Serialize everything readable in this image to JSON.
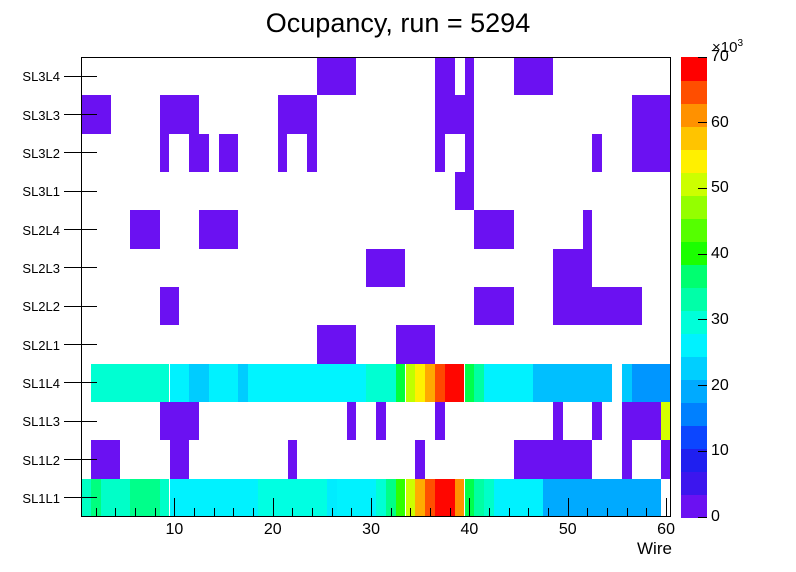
{
  "title": "Ocupancy, run = 5294",
  "x_axis": {
    "title": "Wire",
    "range": [
      0.5,
      60.5
    ],
    "major_ticks": [
      10,
      20,
      30,
      40,
      50,
      60
    ],
    "minor_tick_values": [
      2,
      4,
      6,
      8,
      12,
      14,
      16,
      18,
      22,
      24,
      26,
      28,
      32,
      34,
      36,
      38,
      42,
      44,
      46,
      48,
      52,
      54,
      56,
      58
    ]
  },
  "y_axis": {
    "row_labels": [
      "SL3L4",
      "SL3L3",
      "SL3L2",
      "SL3L1",
      "SL2L4",
      "SL2L3",
      "SL2L2",
      "SL2L1",
      "SL1L4",
      "SL1L3",
      "SL1L2",
      "SL1L1"
    ]
  },
  "colorbar": {
    "exponent_base": "×10",
    "exponent_power": "3",
    "ticks": [
      0,
      10,
      20,
      30,
      40,
      50,
      60,
      70
    ],
    "max_value_k": 70,
    "palette_bottom_to_top": [
      "#6B11F2",
      "#3C16EE",
      "#1F1FF0",
      "#0C46FF",
      "#0080FF",
      "#00AAFF",
      "#00CFFF",
      "#00F2FF",
      "#00FFD9",
      "#00FFA8",
      "#00FF70",
      "#1BFF00",
      "#55FF00",
      "#94FF00",
      "#CCFF00",
      "#FFF000",
      "#FFC400",
      "#FF9100",
      "#FF4E00",
      "#FF0000"
    ]
  },
  "chart_data": {
    "type": "heatmap",
    "title": "Ocupancy, run = 5294",
    "xlabel": "Wire",
    "x_range": [
      1,
      60
    ],
    "value_units": "counts, thousands (×10³)",
    "zlim_k": [
      0,
      70
    ],
    "default_fill_value_k": 2,
    "default_fill_color": "#6B11F2",
    "legend_position": "right-colorbar",
    "grid": false,
    "rows": [
      {
        "label": "SL3L4",
        "cells": [
          [
            25,
            28
          ],
          [
            37,
            38
          ],
          [
            40,
            40
          ],
          [
            45,
            48
          ]
        ]
      },
      {
        "label": "SL3L3",
        "cells": [
          [
            1,
            3
          ],
          [
            9,
            12
          ],
          [
            21,
            24
          ],
          [
            37,
            40
          ],
          [
            57,
            60
          ]
        ]
      },
      {
        "label": "SL3L2",
        "cells": [
          [
            9,
            9
          ],
          [
            12,
            13
          ],
          [
            15,
            16
          ],
          [
            21,
            21
          ],
          [
            24,
            24
          ],
          [
            37,
            37
          ],
          [
            40,
            40
          ],
          [
            53,
            53
          ],
          [
            57,
            60
          ]
        ]
      },
      {
        "label": "SL3L1",
        "cells": [
          [
            39,
            40
          ]
        ]
      },
      {
        "label": "SL2L4",
        "cells": [
          [
            6,
            8
          ],
          [
            13,
            16
          ],
          [
            41,
            44
          ],
          [
            52,
            52
          ]
        ]
      },
      {
        "label": "SL2L3",
        "cells": [
          [
            30,
            33
          ],
          [
            49,
            52
          ]
        ]
      },
      {
        "label": "SL2L2",
        "cells": [
          [
            9,
            10
          ],
          [
            41,
            44
          ],
          [
            49,
            57
          ]
        ]
      },
      {
        "label": "SL2L1",
        "cells": [
          [
            25,
            28
          ],
          [
            33,
            36
          ]
        ]
      },
      {
        "label": "SL1L4",
        "cells": [
          [
            2,
            9,
            27,
            "#00FFD2"
          ],
          [
            10,
            11,
            23,
            "#00F2FF"
          ],
          [
            12,
            13,
            20,
            "#00CCFF"
          ],
          [
            14,
            16,
            23,
            "#00F2FF"
          ],
          [
            17,
            17,
            20,
            "#00CCFF"
          ],
          [
            18,
            29,
            23,
            "#00F4FF"
          ],
          [
            30,
            32,
            27,
            "#00FFD2"
          ],
          [
            33,
            33,
            36,
            "#00FF3C"
          ],
          [
            34,
            34,
            47,
            "#BFFF00"
          ],
          [
            35,
            35,
            54,
            "#FFF000"
          ],
          [
            36,
            36,
            58,
            "#FFA800"
          ],
          [
            37,
            37,
            64,
            "#FF4800"
          ],
          [
            38,
            39,
            68,
            "#FF0600"
          ],
          [
            40,
            40,
            34,
            "#00FF4A"
          ],
          [
            41,
            41,
            30,
            "#00FFA2"
          ],
          [
            42,
            46,
            23,
            "#00F2FF"
          ],
          [
            47,
            54,
            19,
            "#00BFFF"
          ],
          [
            56,
            56,
            21,
            "#00C8FF"
          ],
          [
            57,
            60,
            16,
            "#0096FF"
          ]
        ]
      },
      {
        "label": "SL1L3",
        "cells": [
          [
            9,
            12
          ],
          [
            28,
            28
          ],
          [
            31,
            31
          ],
          [
            37,
            37
          ],
          [
            49,
            49
          ],
          [
            53,
            53
          ],
          [
            56,
            59
          ],
          [
            60,
            60,
            47,
            "#D4FF00"
          ]
        ]
      },
      {
        "label": "SL1L2",
        "cells": [
          [
            2,
            4
          ],
          [
            10,
            11
          ],
          [
            22,
            22
          ],
          [
            35,
            35
          ],
          [
            45,
            52
          ],
          [
            56,
            56
          ],
          [
            60,
            60
          ]
        ]
      },
      {
        "label": "SL1L1",
        "cells": [
          [
            1,
            1,
            26,
            "#00FFC4"
          ],
          [
            2,
            2,
            31,
            "#00FF7E"
          ],
          [
            3,
            5,
            27,
            "#00FFC8"
          ],
          [
            6,
            8,
            32,
            "#00FF8A"
          ],
          [
            9,
            9,
            27,
            "#00FFC8"
          ],
          [
            10,
            18,
            23,
            "#00F2FF"
          ],
          [
            19,
            25,
            25,
            "#00FFE2"
          ],
          [
            26,
            26,
            22,
            "#00ECFF"
          ],
          [
            27,
            30,
            23,
            "#00F2FF"
          ],
          [
            31,
            31,
            26,
            "#00FFD4"
          ],
          [
            32,
            32,
            31,
            "#00FF86"
          ],
          [
            33,
            33,
            38,
            "#2EFF00"
          ],
          [
            34,
            34,
            47,
            "#CCFF00"
          ],
          [
            35,
            35,
            58,
            "#FFAC00"
          ],
          [
            36,
            36,
            63,
            "#FF5000"
          ],
          [
            37,
            38,
            68,
            "#FF0600"
          ],
          [
            39,
            39,
            60,
            "#FF9300"
          ],
          [
            40,
            40,
            34,
            "#00FF4A"
          ],
          [
            41,
            41,
            30,
            "#00FFA2"
          ],
          [
            42,
            42,
            27,
            "#00FFC8"
          ],
          [
            43,
            47,
            23,
            "#00F2FF"
          ],
          [
            48,
            59,
            18,
            "#00AAFF"
          ]
        ]
      }
    ]
  }
}
